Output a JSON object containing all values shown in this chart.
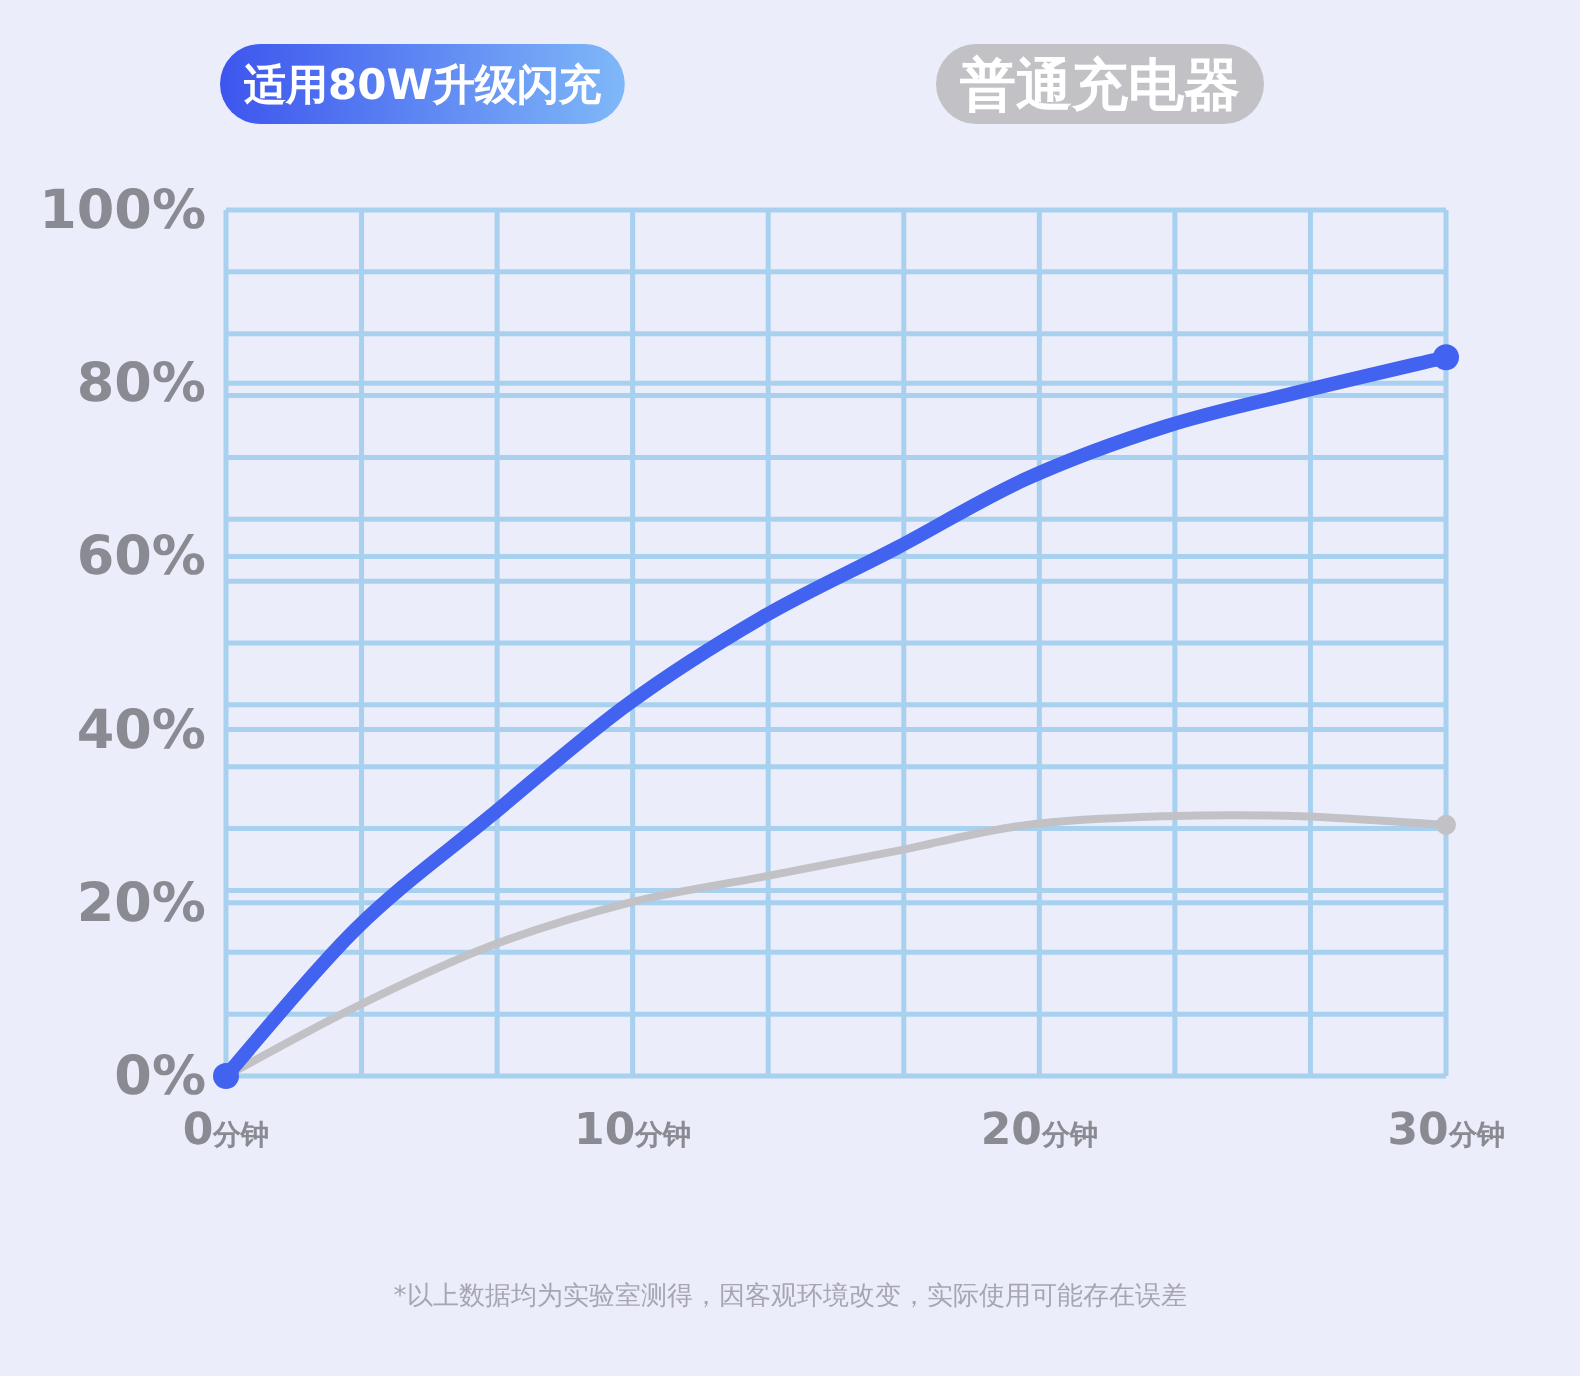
{
  "chart_data": {
    "type": "line",
    "x": [
      0,
      3.2,
      6.5,
      9.9,
      13.2,
      16.5,
      19.7,
      23.1,
      26.4,
      30
    ],
    "series": [
      {
        "name": "适用80W升级闪充",
        "color": "#4262f0",
        "values": [
          0,
          17,
          30,
          43,
          53,
          61,
          69,
          75,
          79,
          83
        ]
      },
      {
        "name": "普通充电器",
        "color": "#c2c2c6",
        "values": [
          0,
          8,
          15,
          20,
          23,
          26,
          29,
          30,
          30,
          29
        ]
      }
    ],
    "xlim": [
      0,
      30
    ],
    "xticks": [
      {
        "value": 0,
        "label": "0分钟"
      },
      {
        "value": 3.333,
        "label": null
      },
      {
        "value": 6.667,
        "label": null
      },
      {
        "value": 10,
        "label": "10分钟"
      },
      {
        "value": 13.333,
        "label": null
      },
      {
        "value": 16.667,
        "label": null
      },
      {
        "value": 20,
        "label": "20分钟"
      },
      {
        "value": 23.333,
        "label": null
      },
      {
        "value": 26.667,
        "label": null
      },
      {
        "value": 30,
        "label": "30分钟"
      }
    ],
    "ylim": [
      0,
      100
    ],
    "yticks": [
      {
        "value": 0,
        "label": "0%"
      },
      {
        "value": 7.14,
        "label": null
      },
      {
        "value": 14.29,
        "label": null
      },
      {
        "value": 20,
        "label": "20%"
      },
      {
        "value": 21.43,
        "label": null
      },
      {
        "value": 28.57,
        "label": null
      },
      {
        "value": 35.71,
        "label": null
      },
      {
        "value": 40,
        "label": "40%"
      },
      {
        "value": 42.86,
        "label": null
      },
      {
        "value": 50,
        "label": null
      },
      {
        "value": 57.14,
        "label": null
      },
      {
        "value": 60,
        "label": "60%"
      },
      {
        "value": 64.29,
        "label": null
      },
      {
        "value": 71.43,
        "label": null
      },
      {
        "value": 78.57,
        "label": null
      },
      {
        "value": 80,
        "label": "80%"
      },
      {
        "value": 85.71,
        "label": null
      },
      {
        "value": 92.86,
        "label": null
      },
      {
        "value": 100,
        "label": "100%"
      }
    ],
    "grid": true,
    "legend": "top",
    "annotations": [
      "*以上数据均为实验室测得，因客观环境改变，实际使用可能存在误差"
    ]
  }
}
